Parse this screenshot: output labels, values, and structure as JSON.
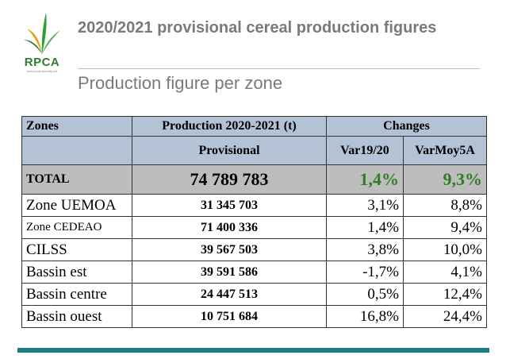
{
  "logo": {
    "text": "RPCA",
    "tagline": "www.food-security.net"
  },
  "title": "2020/2021 provisional cereal production figures",
  "subtitle": "Production figure per zone",
  "colors": {
    "header_bg": "#b4c2d6",
    "total_bg": "#bdbdbd",
    "total_text": "#2e7d22",
    "footer_bar": "#1d7b82",
    "logo_green": "#2f7d31"
  },
  "table": {
    "header1": {
      "zones": "Zones",
      "production": "Production 2020-2021 (t)",
      "changes": "Changes"
    },
    "header2": {
      "provisional": "Provisional",
      "var1": "Var19/20",
      "var2": "VarMoy5A"
    },
    "total": {
      "zone": "TOTAL",
      "production": "74 789 783",
      "var1": "1,4%",
      "var2": "9,3%"
    },
    "rows": [
      {
        "zone": "Zone UEMOA",
        "production": "31 345 703",
        "var1": "3,1%",
        "var2": "8,8%"
      },
      {
        "zone": "Zone CEDEAO",
        "production": "71 400 336",
        "var1": "1,4%",
        "var2": "9,4%"
      },
      {
        "zone": "CILSS",
        "production": "39 567 503",
        "var1": "3,8%",
        "var2": "10,0%"
      },
      {
        "zone": "Bassin est",
        "production": "39 591 586",
        "var1": "-1,7%",
        "var2": "4,1%"
      },
      {
        "zone": "Bassin centre",
        "production": "24 447 513",
        "var1": "0,5%",
        "var2": "12,4%"
      },
      {
        "zone": "Bassin ouest",
        "production": "10 751 684",
        "var1": "16,8%",
        "var2": "24,4%"
      }
    ]
  }
}
